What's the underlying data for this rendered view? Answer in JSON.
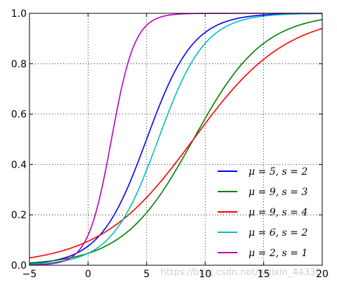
{
  "chart_data": {
    "type": "line",
    "title": "",
    "xlabel": "",
    "ylabel": "",
    "xlim": [
      -5,
      20
    ],
    "ylim": [
      0.0,
      1.0
    ],
    "xticks": [
      -5,
      0,
      5,
      10,
      15,
      20
    ],
    "xtick_labels": [
      "−5",
      "0",
      "5",
      "10",
      "15",
      "20"
    ],
    "yticks": [
      0.0,
      0.2,
      0.4,
      0.6,
      0.8,
      1.0
    ],
    "ytick_labels": [
      "0.0",
      "0.2",
      "0.4",
      "0.6",
      "0.8",
      "1.0"
    ],
    "grid": true,
    "grid_style": "dotted",
    "legend_position": "bottom-right",
    "series": [
      {
        "name": "μ = 5,  s = 2",
        "mu": 5,
        "s": 2,
        "color": "#0000ff"
      },
      {
        "name": "μ = 9,  s = 3",
        "mu": 9,
        "s": 3,
        "color": "#008000"
      },
      {
        "name": "μ = 9,  s = 4",
        "mu": 9,
        "s": 4,
        "color": "#ff0000"
      },
      {
        "name": "μ = 6,  s = 2",
        "mu": 6,
        "s": 2,
        "color": "#00bfbf"
      },
      {
        "name": "μ = 2,  s = 1",
        "mu": 2,
        "s": 1,
        "color": "#bf00bf"
      }
    ]
  },
  "watermark": "https://blog.csdn.net/weixin_44330..."
}
